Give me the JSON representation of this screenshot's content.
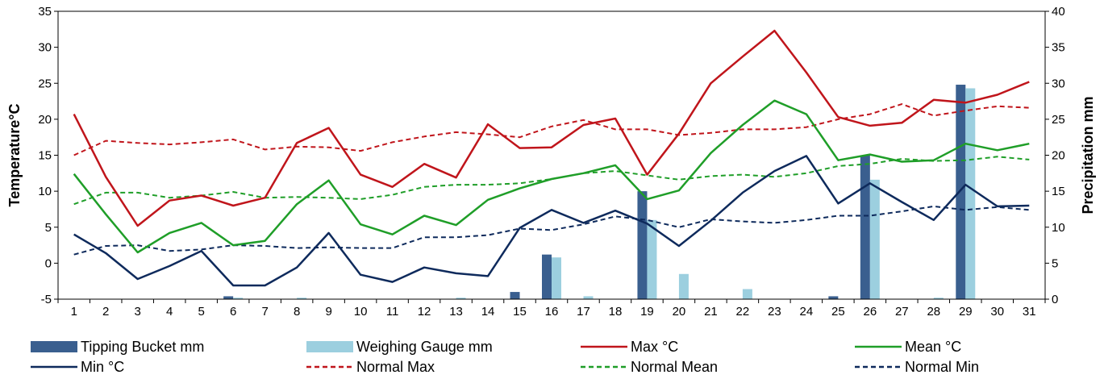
{
  "chart_data": {
    "type": "bar+line",
    "x": [
      1,
      2,
      3,
      4,
      5,
      6,
      7,
      8,
      9,
      10,
      11,
      12,
      13,
      14,
      15,
      16,
      17,
      18,
      19,
      20,
      21,
      22,
      23,
      24,
      25,
      26,
      27,
      28,
      29,
      30,
      31
    ],
    "y_left": {
      "label": "Temperature°C",
      "range": [
        -5,
        35
      ],
      "ticks": [
        -5,
        0,
        5,
        10,
        15,
        20,
        25,
        30,
        35
      ]
    },
    "y_right": {
      "label": "Precipitation mm",
      "range": [
        0,
        40
      ],
      "ticks": [
        0,
        5,
        10,
        15,
        20,
        25,
        30,
        35,
        40
      ]
    },
    "grid": false,
    "legend_placement": "bottom",
    "bar_series": [
      {
        "name": "Tipping Bucket mm",
        "color": "#3a5f8f",
        "axis": "right",
        "values": [
          0,
          0,
          0,
          0,
          0,
          0.4,
          0,
          0,
          0,
          0,
          0,
          0,
          0,
          0,
          1,
          6.2,
          0,
          0,
          15,
          0,
          0,
          0,
          0,
          0,
          0.4,
          20,
          0,
          0,
          29.8,
          0,
          0
        ]
      },
      {
        "name": "Weighing Gauge mm",
        "color": "#9ccfdf",
        "axis": "right",
        "values": [
          0,
          0,
          0,
          0,
          0,
          0.2,
          0,
          0.2,
          0,
          0,
          0,
          0,
          0.2,
          0,
          0,
          5.8,
          0.4,
          0,
          11,
          3.5,
          0,
          1.4,
          0,
          0,
          0,
          16.6,
          0,
          0.2,
          29.3,
          0,
          0
        ]
      }
    ],
    "line_series": [
      {
        "name": "Max °C",
        "color": "#c0151b",
        "dashed": false,
        "axis": "left",
        "values": [
          20.7,
          12,
          5.2,
          8.7,
          9.4,
          8,
          9.1,
          16.7,
          18.8,
          12.3,
          10.6,
          13.8,
          11.9,
          19.3,
          16,
          16.1,
          19.2,
          20.1,
          12.3,
          18,
          25,
          28.7,
          32.3,
          26.5,
          20.3,
          19.1,
          19.5,
          22.7,
          22.3,
          23.4,
          25.2
        ]
      },
      {
        "name": "Mean °C",
        "color": "#1f9e28",
        "dashed": false,
        "axis": "left",
        "values": [
          12.4,
          6.8,
          1.5,
          4.2,
          5.6,
          2.5,
          3.1,
          8.2,
          11.5,
          5.4,
          4,
          6.6,
          5.3,
          8.8,
          10.4,
          11.7,
          12.5,
          13.6,
          8.9,
          10.1,
          15.3,
          19.2,
          22.6,
          20.7,
          14.3,
          15.1,
          14.1,
          14.3,
          16.6,
          15.7,
          16.6
        ]
      },
      {
        "name": "Min °C",
        "color": "#0e2a5c",
        "dashed": false,
        "axis": "left",
        "values": [
          4,
          1.4,
          -2.2,
          -0.4,
          1.7,
          -3.1,
          -3.1,
          -0.6,
          4.2,
          -1.6,
          -2.6,
          -0.6,
          -1.4,
          -1.8,
          4.9,
          7.4,
          5.6,
          7.3,
          5.5,
          2.4,
          5.9,
          9.8,
          12.8,
          14.9,
          8.3,
          11.1,
          8.5,
          6,
          10.9,
          7.9,
          8
        ]
      },
      {
        "name": "Normal Max",
        "color": "#c0151b",
        "dashed": true,
        "axis": "left",
        "values": [
          15,
          17,
          16.7,
          16.5,
          16.8,
          17.2,
          15.8,
          16.2,
          16.1,
          15.6,
          16.8,
          17.6,
          18.2,
          17.9,
          17.5,
          19,
          19.9,
          18.6,
          18.6,
          17.8,
          18.1,
          18.6,
          18.6,
          18.9,
          20,
          20.7,
          22.1,
          20.5,
          21.2,
          21.8,
          21.6
        ]
      },
      {
        "name": "Normal Mean",
        "color": "#1f9e28",
        "dashed": true,
        "axis": "left",
        "values": [
          8.2,
          9.8,
          9.8,
          9.1,
          9.4,
          9.9,
          9.1,
          9.2,
          9.1,
          8.9,
          9.5,
          10.6,
          10.9,
          10.9,
          11.1,
          11.7,
          12.5,
          12.8,
          12.2,
          11.6,
          12.1,
          12.3,
          12,
          12.5,
          13.5,
          13.8,
          14.5,
          14.2,
          14.3,
          14.8,
          14.4
        ]
      },
      {
        "name": "Normal Min",
        "color": "#0e2a5c",
        "dashed": true,
        "axis": "left",
        "values": [
          1.2,
          2.4,
          2.5,
          1.7,
          1.9,
          2.5,
          2.4,
          2.1,
          2.2,
          2.1,
          2.1,
          3.6,
          3.6,
          3.9,
          4.8,
          4.6,
          5.4,
          6.5,
          6,
          5,
          6.1,
          5.8,
          5.6,
          6,
          6.6,
          6.6,
          7.2,
          7.9,
          7.4,
          7.8,
          7.4
        ]
      }
    ]
  }
}
